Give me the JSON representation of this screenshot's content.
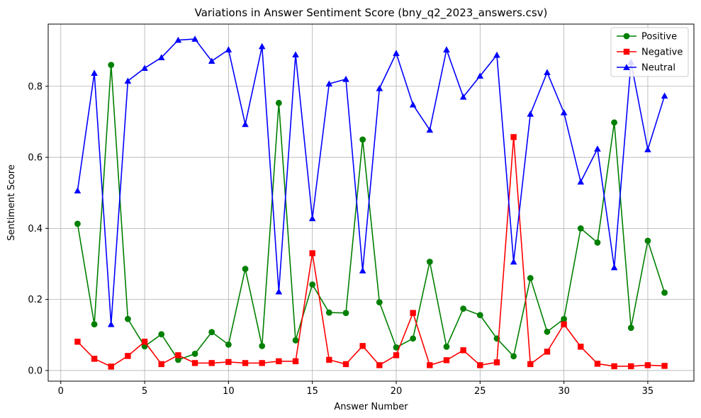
{
  "chart_data": {
    "type": "line",
    "title": "Variations in Answer Sentiment Score (bny_q2_2023_answers.csv)",
    "xlabel": "Answer Number",
    "ylabel": "Sentiment Score",
    "xlim": [
      -0.75,
      37.75
    ],
    "ylim": [
      -0.03,
      0.975
    ],
    "xticks": [
      0,
      5,
      10,
      15,
      20,
      25,
      30,
      35
    ],
    "yticks": [
      0.0,
      0.2,
      0.4,
      0.6,
      0.8
    ],
    "grid": true,
    "legend_position": "top-right",
    "x": [
      1,
      2,
      3,
      4,
      5,
      6,
      7,
      8,
      9,
      10,
      11,
      12,
      13,
      14,
      15,
      16,
      17,
      18,
      19,
      20,
      21,
      22,
      23,
      24,
      25,
      26,
      27,
      28,
      29,
      30,
      31,
      32,
      33,
      34,
      35,
      36
    ],
    "series": [
      {
        "name": "Positive",
        "color": "#008000",
        "marker": "circle",
        "values": [
          0.413,
          0.13,
          0.86,
          0.145,
          0.068,
          0.102,
          0.03,
          0.047,
          0.108,
          0.073,
          0.286,
          0.069,
          0.753,
          0.085,
          0.242,
          0.163,
          0.162,
          0.65,
          0.192,
          0.065,
          0.09,
          0.306,
          0.067,
          0.174,
          0.156,
          0.09,
          0.04,
          0.26,
          0.109,
          0.145,
          0.4,
          0.36,
          0.698,
          0.12,
          0.365,
          0.219
        ]
      },
      {
        "name": "Negative",
        "color": "#ff0000",
        "marker": "square",
        "values": [
          0.081,
          0.033,
          0.011,
          0.041,
          0.081,
          0.018,
          0.043,
          0.021,
          0.021,
          0.024,
          0.021,
          0.021,
          0.026,
          0.026,
          0.33,
          0.03,
          0.018,
          0.069,
          0.015,
          0.043,
          0.162,
          0.015,
          0.029,
          0.057,
          0.015,
          0.023,
          0.657,
          0.018,
          0.053,
          0.13,
          0.067,
          0.019,
          0.012,
          0.012,
          0.015,
          0.013
        ]
      },
      {
        "name": "Neutral",
        "color": "#0000ff",
        "marker": "triangle",
        "values": [
          0.506,
          0.837,
          0.13,
          0.815,
          0.851,
          0.881,
          0.93,
          0.933,
          0.871,
          0.903,
          0.693,
          0.912,
          0.222,
          0.889,
          0.428,
          0.807,
          0.82,
          0.281,
          0.794,
          0.893,
          0.748,
          0.677,
          0.903,
          0.77,
          0.829,
          0.888,
          0.306,
          0.722,
          0.839,
          0.726,
          0.531,
          0.624,
          0.29,
          0.868,
          0.622,
          0.773
        ]
      }
    ]
  }
}
